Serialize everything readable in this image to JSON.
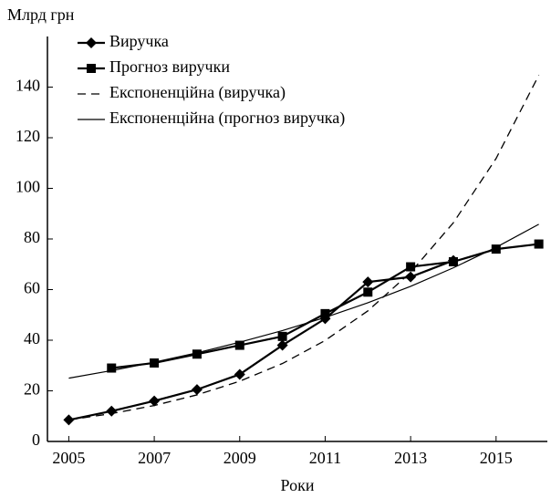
{
  "chart_data": {
    "type": "line",
    "y_label": "Млрд грн",
    "x_label": "Роки",
    "x": [
      2005,
      2006,
      2007,
      2008,
      2009,
      2010,
      2011,
      2012,
      2013,
      2014,
      2015,
      2016
    ],
    "series": [
      {
        "name": "Виручка",
        "color": "#000000",
        "marker": "diamond",
        "dash": false,
        "values": [
          8.5,
          12,
          16,
          20.5,
          26.5,
          38,
          48.5,
          63,
          65,
          71.5,
          null,
          null
        ]
      },
      {
        "name": "Прогноз виручки",
        "color": "#000000",
        "marker": "square",
        "dash": false,
        "values": [
          null,
          29,
          31,
          34.5,
          38,
          41.5,
          50.5,
          59,
          69,
          71,
          76,
          78
        ]
      },
      {
        "name": "Експоненційна (виручка)",
        "color": "#000000",
        "marker": null,
        "dash": true,
        "values": [
          8.5,
          11,
          14.2,
          18.4,
          23.8,
          30.8,
          39.9,
          51.6,
          66.8,
          86.4,
          111.8,
          144.7
        ]
      },
      {
        "name": "Експоненційна (прогноз виручка)",
        "color": "#000000",
        "marker": null,
        "dash": false,
        "values": [
          25,
          28,
          31.3,
          35,
          39.2,
          43.8,
          49,
          54.8,
          61.3,
          68.6,
          76.7,
          85.8
        ]
      }
    ],
    "xlim": [
      2004.5,
      2016.2
    ],
    "xticks": [
      2005,
      2007,
      2009,
      2011,
      2013,
      2015
    ],
    "ylim": [
      0,
      160
    ],
    "yticks": [
      0,
      20,
      40,
      60,
      80,
      100,
      120,
      140
    ],
    "grid": false,
    "legend": "upper left"
  }
}
